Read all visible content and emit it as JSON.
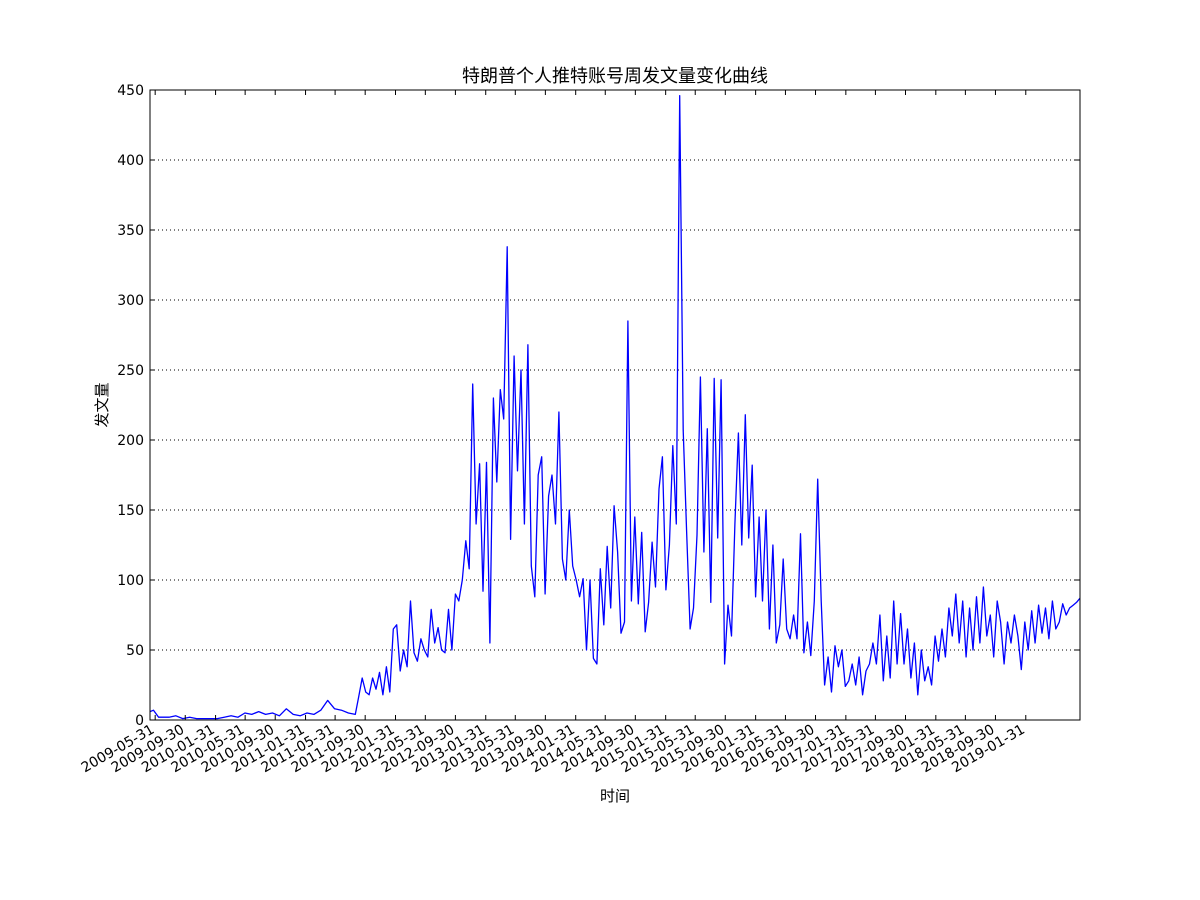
{
  "chart_data": {
    "type": "line",
    "title": "特朗普个人推特账号周发文量变化曲线",
    "xlabel": "时间",
    "ylabel": "发文量",
    "ylim": [
      0,
      450
    ],
    "yticks": [
      0,
      50,
      100,
      150,
      200,
      250,
      300,
      350,
      400,
      450
    ],
    "grid": "y-dotted",
    "line_color": "#0000ff",
    "x_tick_labels": [
      "2009-05-31",
      "2009-09-30",
      "2010-01-31",
      "2010-05-31",
      "2010-09-30",
      "2011-01-31",
      "2011-05-31",
      "2011-09-30",
      "2012-01-31",
      "2012-05-31",
      "2012-09-30",
      "2013-01-31",
      "2013-05-31",
      "2013-09-30",
      "2014-01-31",
      "2014-05-31",
      "2014-09-30",
      "2015-01-31",
      "2015-05-31",
      "2015-09-30",
      "2016-01-31",
      "2016-05-31",
      "2016-09-30",
      "2017-01-31",
      "2017-05-31",
      "2017-09-30",
      "2018-01-31",
      "2018-05-31",
      "2018-09-30",
      "2019-01-31"
    ],
    "x_range": [
      "2009-05-10",
      "2019-09-08"
    ],
    "series": [
      {
        "name": "",
        "points": [
          [
            "2009-05-10",
            6
          ],
          [
            "2009-05-24",
            7
          ],
          [
            "2009-06-14",
            2
          ],
          [
            "2009-07-26",
            2
          ],
          [
            "2009-08-23",
            3
          ],
          [
            "2009-09-20",
            1
          ],
          [
            "2009-10-18",
            2
          ],
          [
            "2009-11-15",
            1
          ],
          [
            "2009-12-27",
            1
          ],
          [
            "2010-02-07",
            1
          ],
          [
            "2010-03-07",
            2
          ],
          [
            "2010-04-04",
            3
          ],
          [
            "2010-05-02",
            2
          ],
          [
            "2010-05-30",
            5
          ],
          [
            "2010-06-27",
            4
          ],
          [
            "2010-07-25",
            6
          ],
          [
            "2010-08-22",
            4
          ],
          [
            "2010-09-19",
            5
          ],
          [
            "2010-10-17",
            3
          ],
          [
            "2010-11-14",
            8
          ],
          [
            "2010-12-12",
            4
          ],
          [
            "2011-01-09",
            3
          ],
          [
            "2011-02-06",
            5
          ],
          [
            "2011-03-06",
            4
          ],
          [
            "2011-04-03",
            7
          ],
          [
            "2011-05-01",
            14
          ],
          [
            "2011-05-29",
            8
          ],
          [
            "2011-06-26",
            7
          ],
          [
            "2011-07-24",
            5
          ],
          [
            "2011-08-21",
            4
          ],
          [
            "2011-09-04",
            17
          ],
          [
            "2011-09-18",
            30
          ],
          [
            "2011-10-02",
            20
          ],
          [
            "2011-10-16",
            18
          ],
          [
            "2011-10-30",
            30
          ],
          [
            "2011-11-13",
            22
          ],
          [
            "2011-11-27",
            34
          ],
          [
            "2011-12-11",
            18
          ],
          [
            "2011-12-25",
            38
          ],
          [
            "2012-01-08",
            20
          ],
          [
            "2012-01-22",
            65
          ],
          [
            "2012-02-05",
            68
          ],
          [
            "2012-02-19",
            35
          ],
          [
            "2012-03-04",
            50
          ],
          [
            "2012-03-18",
            38
          ],
          [
            "2012-04-01",
            85
          ],
          [
            "2012-04-15",
            48
          ],
          [
            "2012-04-29",
            42
          ],
          [
            "2012-05-13",
            58
          ],
          [
            "2012-05-27",
            50
          ],
          [
            "2012-06-10",
            45
          ],
          [
            "2012-06-24",
            79
          ],
          [
            "2012-07-08",
            55
          ],
          [
            "2012-07-22",
            66
          ],
          [
            "2012-08-05",
            50
          ],
          [
            "2012-08-19",
            48
          ],
          [
            "2012-09-02",
            79
          ],
          [
            "2012-09-16",
            50
          ],
          [
            "2012-09-30",
            90
          ],
          [
            "2012-10-14",
            85
          ],
          [
            "2012-10-28",
            100
          ],
          [
            "2012-11-11",
            128
          ],
          [
            "2012-11-25",
            108
          ],
          [
            "2012-12-09",
            240
          ],
          [
            "2012-12-23",
            140
          ],
          [
            "2013-01-06",
            183
          ],
          [
            "2013-01-20",
            92
          ],
          [
            "2013-02-03",
            184
          ],
          [
            "2013-02-17",
            55
          ],
          [
            "2013-03-03",
            230
          ],
          [
            "2013-03-17",
            170
          ],
          [
            "2013-03-31",
            236
          ],
          [
            "2013-04-14",
            215
          ],
          [
            "2013-04-28",
            338
          ],
          [
            "2013-05-12",
            129
          ],
          [
            "2013-05-26",
            260
          ],
          [
            "2013-06-09",
            178
          ],
          [
            "2013-06-23",
            250
          ],
          [
            "2013-07-07",
            140
          ],
          [
            "2013-07-21",
            268
          ],
          [
            "2013-08-04",
            110
          ],
          [
            "2013-08-18",
            88
          ],
          [
            "2013-09-01",
            175
          ],
          [
            "2013-09-15",
            188
          ],
          [
            "2013-09-29",
            90
          ],
          [
            "2013-10-13",
            160
          ],
          [
            "2013-10-27",
            175
          ],
          [
            "2013-11-10",
            140
          ],
          [
            "2013-11-24",
            220
          ],
          [
            "2013-12-08",
            115
          ],
          [
            "2013-12-22",
            100
          ],
          [
            "2014-01-05",
            150
          ],
          [
            "2014-01-19",
            110
          ],
          [
            "2014-02-02",
            100
          ],
          [
            "2014-02-16",
            88
          ],
          [
            "2014-03-02",
            101
          ],
          [
            "2014-03-16",
            50
          ],
          [
            "2014-03-30",
            100
          ],
          [
            "2014-04-13",
            44
          ],
          [
            "2014-04-27",
            40
          ],
          [
            "2014-05-11",
            108
          ],
          [
            "2014-05-25",
            68
          ],
          [
            "2014-06-08",
            124
          ],
          [
            "2014-06-22",
            80
          ],
          [
            "2014-07-06",
            153
          ],
          [
            "2014-07-20",
            120
          ],
          [
            "2014-08-03",
            62
          ],
          [
            "2014-08-17",
            70
          ],
          [
            "2014-08-31",
            285
          ],
          [
            "2014-09-14",
            85
          ],
          [
            "2014-09-28",
            145
          ],
          [
            "2014-10-12",
            83
          ],
          [
            "2014-10-26",
            134
          ],
          [
            "2014-11-09",
            63
          ],
          [
            "2014-11-23",
            84
          ],
          [
            "2014-12-07",
            127
          ],
          [
            "2014-12-21",
            95
          ],
          [
            "2015-01-04",
            165
          ],
          [
            "2015-01-18",
            188
          ],
          [
            "2015-02-01",
            93
          ],
          [
            "2015-02-15",
            125
          ],
          [
            "2015-03-01",
            196
          ],
          [
            "2015-03-15",
            140
          ],
          [
            "2015-03-29",
            446
          ],
          [
            "2015-04-12",
            207
          ],
          [
            "2015-04-26",
            135
          ],
          [
            "2015-05-10",
            65
          ],
          [
            "2015-05-24",
            80
          ],
          [
            "2015-06-07",
            132
          ],
          [
            "2015-06-21",
            245
          ],
          [
            "2015-07-05",
            120
          ],
          [
            "2015-07-19",
            208
          ],
          [
            "2015-08-02",
            84
          ],
          [
            "2015-08-16",
            244
          ],
          [
            "2015-08-30",
            130
          ],
          [
            "2015-09-13",
            243
          ],
          [
            "2015-09-27",
            40
          ],
          [
            "2015-10-11",
            82
          ],
          [
            "2015-10-25",
            60
          ],
          [
            "2015-11-08",
            140
          ],
          [
            "2015-11-22",
            205
          ],
          [
            "2015-12-06",
            125
          ],
          [
            "2015-12-20",
            218
          ],
          [
            "2016-01-03",
            130
          ],
          [
            "2016-01-17",
            182
          ],
          [
            "2016-01-31",
            88
          ],
          [
            "2016-02-14",
            145
          ],
          [
            "2016-02-28",
            85
          ],
          [
            "2016-03-13",
            150
          ],
          [
            "2016-03-27",
            65
          ],
          [
            "2016-04-10",
            125
          ],
          [
            "2016-04-24",
            55
          ],
          [
            "2016-05-08",
            68
          ],
          [
            "2016-05-22",
            115
          ],
          [
            "2016-06-05",
            65
          ],
          [
            "2016-06-19",
            58
          ],
          [
            "2016-07-03",
            75
          ],
          [
            "2016-07-17",
            58
          ],
          [
            "2016-07-31",
            133
          ],
          [
            "2016-08-14",
            48
          ],
          [
            "2016-08-28",
            70
          ],
          [
            "2016-09-11",
            46
          ],
          [
            "2016-09-25",
            85
          ],
          [
            "2016-10-09",
            172
          ],
          [
            "2016-10-23",
            85
          ],
          [
            "2016-11-06",
            25
          ],
          [
            "2016-11-20",
            45
          ],
          [
            "2016-12-04",
            20
          ],
          [
            "2016-12-18",
            53
          ],
          [
            "2017-01-01",
            38
          ],
          [
            "2017-01-15",
            50
          ],
          [
            "2017-01-29",
            24
          ],
          [
            "2017-02-12",
            28
          ],
          [
            "2017-02-26",
            40
          ],
          [
            "2017-03-12",
            25
          ],
          [
            "2017-03-26",
            45
          ],
          [
            "2017-04-09",
            18
          ],
          [
            "2017-04-23",
            35
          ],
          [
            "2017-05-07",
            40
          ],
          [
            "2017-05-21",
            55
          ],
          [
            "2017-06-04",
            40
          ],
          [
            "2017-06-18",
            75
          ],
          [
            "2017-07-02",
            28
          ],
          [
            "2017-07-16",
            60
          ],
          [
            "2017-07-30",
            30
          ],
          [
            "2017-08-13",
            85
          ],
          [
            "2017-08-27",
            40
          ],
          [
            "2017-09-10",
            76
          ],
          [
            "2017-09-24",
            40
          ],
          [
            "2017-10-08",
            65
          ],
          [
            "2017-10-22",
            30
          ],
          [
            "2017-11-05",
            55
          ],
          [
            "2017-11-19",
            18
          ],
          [
            "2017-12-03",
            50
          ],
          [
            "2017-12-17",
            28
          ],
          [
            "2017-12-31",
            38
          ],
          [
            "2018-01-14",
            25
          ],
          [
            "2018-01-28",
            60
          ],
          [
            "2018-02-11",
            42
          ],
          [
            "2018-02-25",
            65
          ],
          [
            "2018-03-11",
            45
          ],
          [
            "2018-03-25",
            80
          ],
          [
            "2018-04-08",
            60
          ],
          [
            "2018-04-22",
            90
          ],
          [
            "2018-05-06",
            55
          ],
          [
            "2018-05-20",
            85
          ],
          [
            "2018-06-03",
            45
          ],
          [
            "2018-06-17",
            80
          ],
          [
            "2018-07-01",
            50
          ],
          [
            "2018-07-15",
            88
          ],
          [
            "2018-07-29",
            55
          ],
          [
            "2018-08-12",
            95
          ],
          [
            "2018-08-26",
            60
          ],
          [
            "2018-09-09",
            75
          ],
          [
            "2018-09-23",
            45
          ],
          [
            "2018-10-07",
            85
          ],
          [
            "2018-10-21",
            70
          ],
          [
            "2018-11-04",
            40
          ],
          [
            "2018-11-18",
            70
          ],
          [
            "2018-12-02",
            55
          ],
          [
            "2018-12-16",
            75
          ],
          [
            "2018-12-30",
            60
          ],
          [
            "2019-01-13",
            36
          ],
          [
            "2019-01-27",
            70
          ],
          [
            "2019-02-10",
            50
          ],
          [
            "2019-02-24",
            78
          ],
          [
            "2019-03-10",
            55
          ],
          [
            "2019-03-24",
            82
          ],
          [
            "2019-04-07",
            62
          ],
          [
            "2019-04-21",
            80
          ],
          [
            "2019-05-05",
            58
          ],
          [
            "2019-05-19",
            85
          ],
          [
            "2019-06-02",
            65
          ],
          [
            "2019-06-16",
            70
          ],
          [
            "2019-06-30",
            83
          ],
          [
            "2019-07-14",
            75
          ],
          [
            "2019-07-28",
            80
          ],
          [
            "2019-08-11",
            82
          ],
          [
            "2019-08-25",
            84
          ],
          [
            "2019-09-08",
            87
          ]
        ]
      }
    ]
  }
}
